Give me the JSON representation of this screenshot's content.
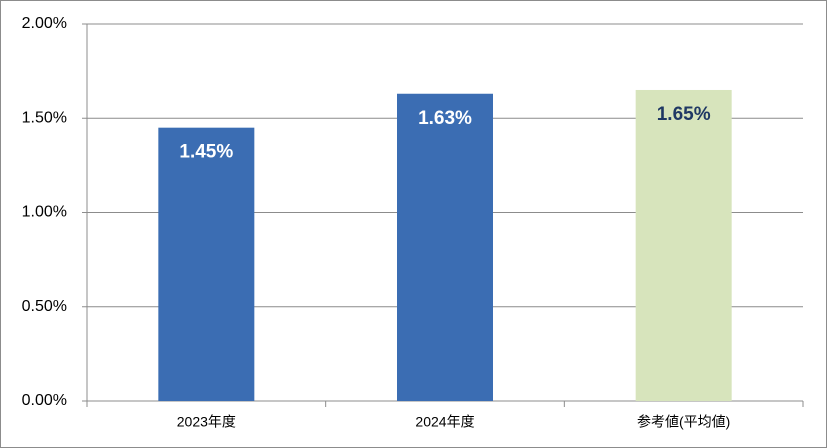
{
  "chart_data": {
    "type": "bar",
    "categories": [
      "2023年度",
      "2024年度",
      "参考値(平均値)"
    ],
    "values": [
      1.45,
      1.63,
      1.65
    ],
    "value_labels": [
      "1.45%",
      "1.63%",
      "1.65%"
    ],
    "colors": [
      "#3b6db3",
      "#3b6db3",
      "#d7e4bc"
    ],
    "value_label_colors": [
      "#ffffff",
      "#ffffff",
      "#1f3864"
    ],
    "ylim": [
      0,
      2
    ],
    "yticks": [
      {
        "value": 0,
        "label": "0.00%"
      },
      {
        "value": 0.5,
        "label": "0.50%"
      },
      {
        "value": 1,
        "label": "1.00%"
      },
      {
        "value": 1.5,
        "label": "1.50%"
      },
      {
        "value": 2,
        "label": "2.00%"
      }
    ],
    "grid": true
  }
}
